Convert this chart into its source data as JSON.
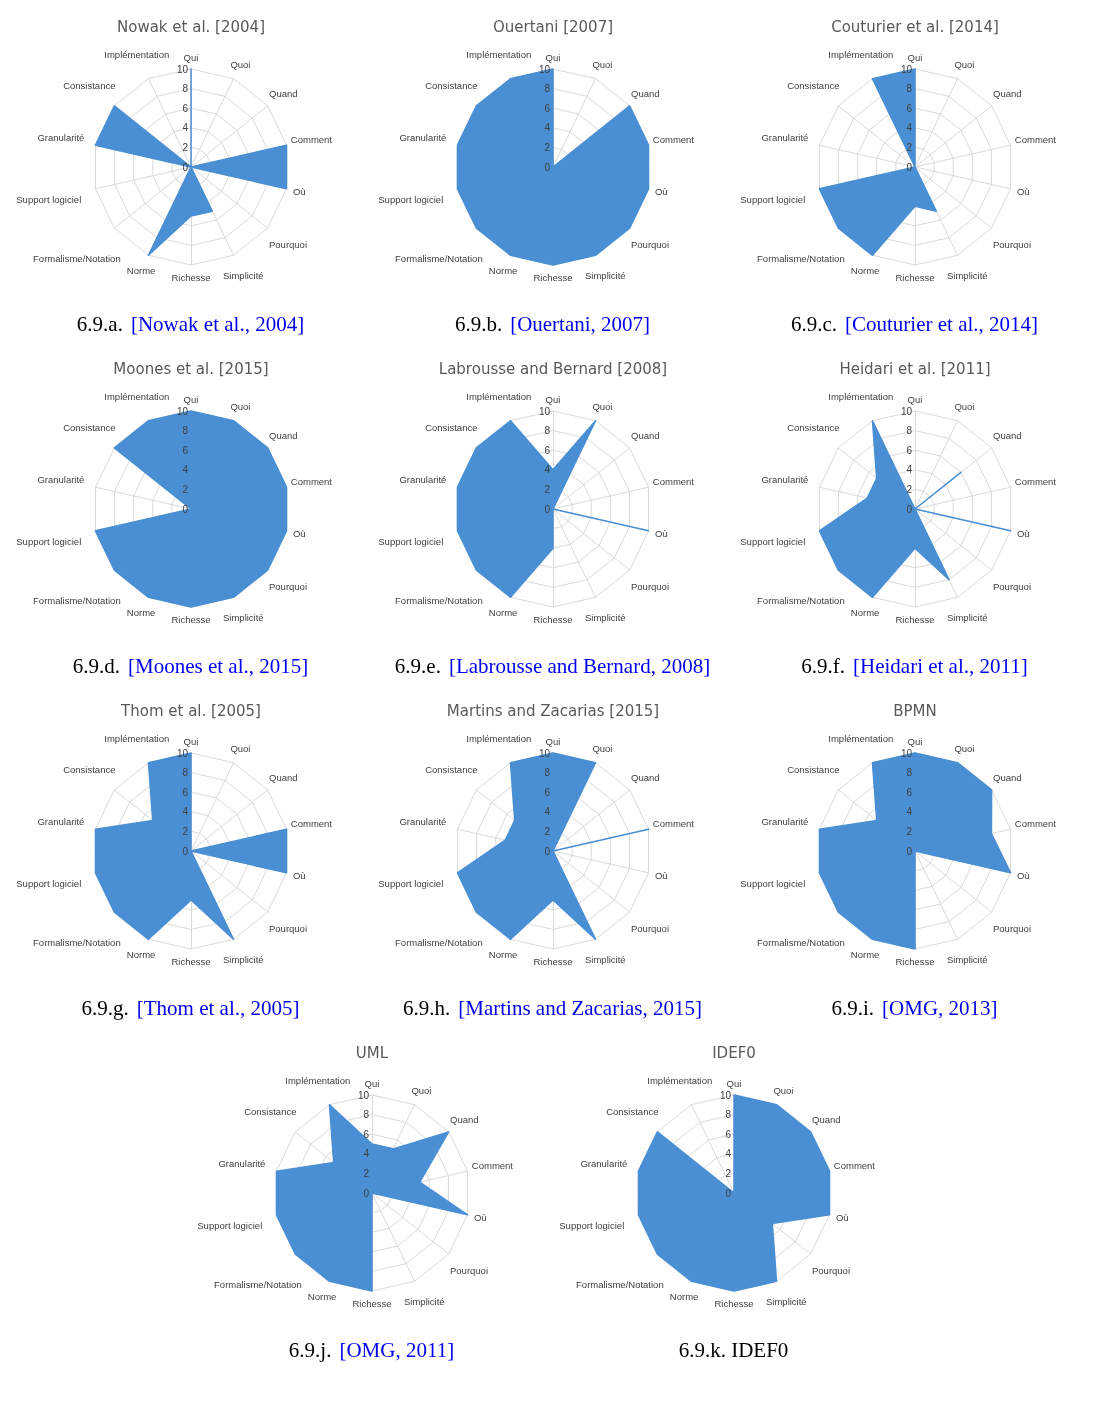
{
  "chart_data": [
    {
      "type": "radar",
      "title": "Nowak et al. [2004]",
      "categories": [
        "Qui",
        "Quoi",
        "Quand",
        "Comment",
        "Où",
        "Pourquoi",
        "Simplicité",
        "Richesse",
        "Norme",
        "Formalisme/Notation",
        "Support logiciel",
        "Granularité",
        "Consistance",
        "Implémentation"
      ],
      "series": [
        {
          "color": "#4a8fd3",
          "values": [
            10,
            0,
            0,
            10,
            10,
            0,
            5,
            5,
            10,
            0,
            0,
            10,
            10,
            0
          ]
        }
      ],
      "ylim": [
        0,
        10
      ],
      "yticks": [
        0,
        2,
        4,
        6,
        8,
        10
      ],
      "annotations": [
        "6.9.a.",
        "[Nowak et al., 2004]"
      ]
    },
    {
      "type": "radar",
      "title": "Ouertani [2007]",
      "categories": [
        "Qui",
        "Quoi",
        "Quand",
        "Comment",
        "Où",
        "Pourquoi",
        "Simplicité",
        "Richesse",
        "Norme",
        "Formalisme/Notation",
        "Support logiciel",
        "Granularité",
        "Consistance",
        "Implémentation"
      ],
      "series": [
        {
          "color": "#4a8fd3",
          "values": [
            10,
            0,
            10,
            10,
            10,
            10,
            10,
            10,
            10,
            10,
            10,
            10,
            10,
            10
          ]
        }
      ],
      "ylim": [
        0,
        10
      ],
      "yticks": [
        0,
        2,
        4,
        6,
        8,
        10
      ],
      "annotations": [
        "6.9.b.",
        "[Ouertani, 2007]"
      ]
    },
    {
      "type": "radar",
      "title": "Couturier et al. [2014]",
      "categories": [
        "Qui",
        "Quoi",
        "Quand",
        "Comment",
        "Où",
        "Pourquoi",
        "Simplicité",
        "Richesse",
        "Norme",
        "Formalisme/Notation",
        "Support logiciel",
        "Granularité",
        "Consistance",
        "Implémentation"
      ],
      "series": [
        {
          "color": "#4a8fd3",
          "values": [
            10,
            0,
            0,
            0,
            0,
            0,
            5,
            4,
            10,
            10,
            10,
            0,
            0,
            10
          ]
        }
      ],
      "ylim": [
        0,
        10
      ],
      "yticks": [
        0,
        2,
        4,
        6,
        8,
        10
      ],
      "annotations": [
        "6.9.c.",
        "[Couturier et al., 2014]"
      ]
    },
    {
      "type": "radar",
      "title": "Moones et al. [2015]",
      "categories": [
        "Qui",
        "Quoi",
        "Quand",
        "Comment",
        "Où",
        "Pourquoi",
        "Simplicité",
        "Richesse",
        "Norme",
        "Formalisme/Notation",
        "Support logiciel",
        "Granularité",
        "Consistance",
        "Implémentation"
      ],
      "series": [
        {
          "color": "#4a8fd3",
          "values": [
            10,
            10,
            10,
            10,
            10,
            10,
            10,
            10,
            10,
            10,
            10,
            0,
            10,
            10
          ]
        }
      ],
      "ylim": [
        0,
        10
      ],
      "yticks": [
        0,
        2,
        4,
        6,
        8,
        10
      ],
      "annotations": [
        "6.9.d.",
        "[Moones et al., 2015]"
      ]
    },
    {
      "type": "radar",
      "title": "Labrousse and Bernard [2008]",
      "categories": [
        "Qui",
        "Quoi",
        "Quand",
        "Comment",
        "Où",
        "Pourquoi",
        "Simplicité",
        "Richesse",
        "Norme",
        "Formalisme/Notation",
        "Support logiciel",
        "Granularité",
        "Consistance",
        "Implémentation"
      ],
      "series": [
        {
          "color": "#4a8fd3",
          "values": [
            4,
            10,
            0,
            0,
            10,
            0,
            0,
            4,
            10,
            10,
            10,
            10,
            10,
            10
          ]
        }
      ],
      "ylim": [
        0,
        10
      ],
      "yticks": [
        0,
        2,
        4,
        6,
        8,
        10
      ],
      "annotations": [
        "6.9.e.",
        "[Labrousse and Bernard, 2008]"
      ]
    },
    {
      "type": "radar",
      "title": "Heidari et al. [2011]",
      "categories": [
        "Qui",
        "Quoi",
        "Quand",
        "Comment",
        "Où",
        "Pourquoi",
        "Simplicité",
        "Richesse",
        "Norme",
        "Formalisme/Notation",
        "Support logiciel",
        "Granularité",
        "Consistance",
        "Implémentation"
      ],
      "series": [
        {
          "color": "#4a8fd3",
          "values": [
            0,
            0,
            6,
            0,
            10,
            0,
            8,
            4,
            10,
            10,
            10,
            5,
            5,
            10
          ]
        }
      ],
      "ylim": [
        0,
        10
      ],
      "yticks": [
        0,
        2,
        4,
        6,
        8,
        10
      ],
      "annotations": [
        "6.9.f.",
        "[Heidari et al., 2011]"
      ]
    },
    {
      "type": "radar",
      "title": "Thom et al. [2005]",
      "categories": [
        "Qui",
        "Quoi",
        "Quand",
        "Comment",
        "Où",
        "Pourquoi",
        "Simplicité",
        "Richesse",
        "Norme",
        "Formalisme/Notation",
        "Support logiciel",
        "Granularité",
        "Consistance",
        "Implémentation"
      ],
      "series": [
        {
          "color": "#4a8fd3",
          "values": [
            10,
            0,
            0,
            10,
            10,
            0,
            10,
            5,
            10,
            10,
            10,
            10,
            5,
            10
          ]
        }
      ],
      "ylim": [
        0,
        10
      ],
      "yticks": [
        0,
        2,
        4,
        6,
        8,
        10
      ],
      "annotations": [
        "6.9.g.",
        "[Thom et al., 2005]"
      ]
    },
    {
      "type": "radar",
      "title": "Martins and Zacarias [2015]",
      "categories": [
        "Qui",
        "Quoi",
        "Quand",
        "Comment",
        "Où",
        "Pourquoi",
        "Simplicité",
        "Richesse",
        "Norme",
        "Formalisme/Notation",
        "Support logiciel",
        "Granularité",
        "Consistance",
        "Implémentation"
      ],
      "series": [
        {
          "color": "#4a8fd3",
          "values": [
            10,
            10,
            0,
            10,
            0,
            0,
            10,
            5,
            10,
            10,
            10,
            5,
            5,
            10
          ]
        }
      ],
      "ylim": [
        0,
        10
      ],
      "yticks": [
        0,
        2,
        4,
        6,
        8,
        10
      ],
      "annotations": [
        "6.9.h.",
        "[Martins and Zacarias, 2015]"
      ]
    },
    {
      "type": "radar",
      "title": "BPMN",
      "categories": [
        "Qui",
        "Quoi",
        "Quand",
        "Comment",
        "Où",
        "Pourquoi",
        "Simplicité",
        "Richesse",
        "Norme",
        "Formalisme/Notation",
        "Support logiciel",
        "Granularité",
        "Consistance",
        "Implémentation"
      ],
      "series": [
        {
          "color": "#4a8fd3",
          "values": [
            10,
            10,
            10,
            8,
            10,
            0,
            0,
            10,
            10,
            10,
            10,
            10,
            5,
            10
          ]
        }
      ],
      "ylim": [
        0,
        10
      ],
      "yticks": [
        0,
        2,
        4,
        6,
        8,
        10
      ],
      "annotations": [
        "6.9.i.",
        "[OMG, 2013]"
      ]
    },
    {
      "type": "radar",
      "title": "UML",
      "categories": [
        "Qui",
        "Quoi",
        "Quand",
        "Comment",
        "Où",
        "Pourquoi",
        "Simplicité",
        "Richesse",
        "Norme",
        "Formalisme/Notation",
        "Support logiciel",
        "Granularité",
        "Consistance",
        "Implémentation"
      ],
      "series": [
        {
          "color": "#4a8fd3",
          "values": [
            5,
            5,
            10,
            5,
            10,
            0,
            0,
            10,
            10,
            10,
            10,
            10,
            5,
            10
          ]
        }
      ],
      "ylim": [
        0,
        10
      ],
      "yticks": [
        0,
        2,
        4,
        6,
        8,
        10
      ],
      "annotations": [
        "6.9.j.",
        "[OMG, 2011]"
      ]
    },
    {
      "type": "radar",
      "title": "IDEF0",
      "categories": [
        "Qui",
        "Quoi",
        "Quand",
        "Comment",
        "Où",
        "Pourquoi",
        "Simplicité",
        "Richesse",
        "Norme",
        "Formalisme/Notation",
        "Support logiciel",
        "Granularité",
        "Consistance",
        "Implémentation"
      ],
      "series": [
        {
          "color": "#4a8fd3",
          "values": [
            10,
            10,
            10,
            10,
            10,
            5,
            10,
            10,
            10,
            10,
            10,
            10,
            10,
            0
          ]
        }
      ],
      "ylim": [
        0,
        10
      ],
      "yticks": [
        0,
        2,
        4,
        6,
        8,
        10
      ],
      "annotations": [
        "6.9.k. IDEF0"
      ]
    }
  ]
}
